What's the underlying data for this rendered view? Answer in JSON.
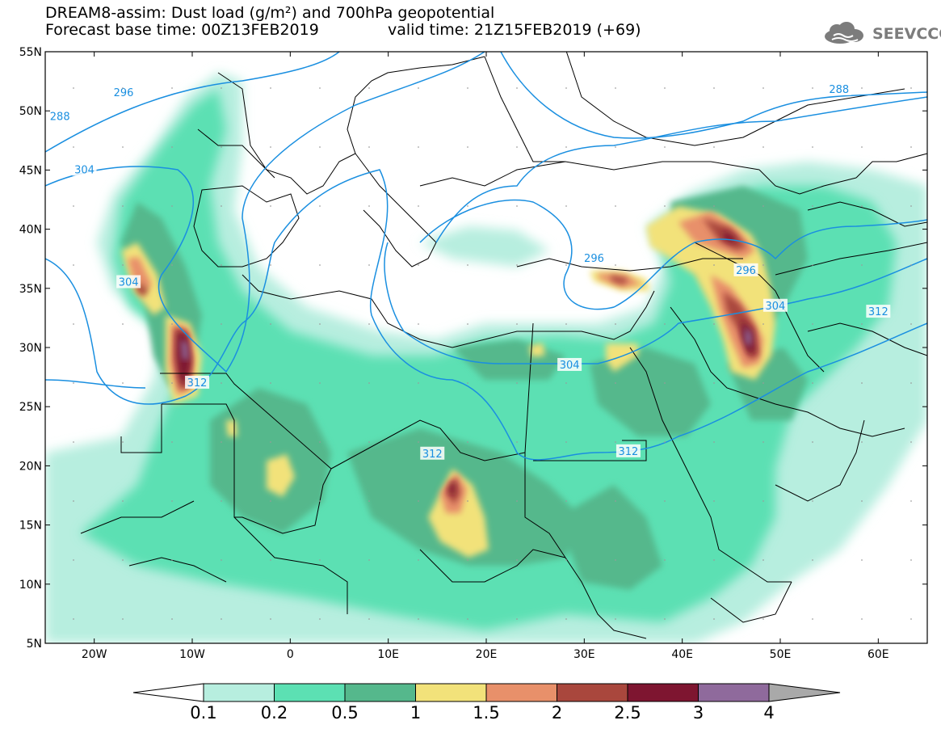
{
  "header": {
    "title_line1": "DREAM8-assim: Dust load (g/m²) and 700hPa geopotential",
    "title_line2": "Forecast base time: 00Z13FEB2019",
    "valid_time": "valid time: 21Z15FEB2019 (+69)",
    "logo_text": "SEEVCCC"
  },
  "map": {
    "lon_range": [
      -25,
      65
    ],
    "lat_range": [
      5,
      55
    ],
    "lat_ticks": [
      {
        "value": 55,
        "label": "55N"
      },
      {
        "value": 50,
        "label": "50N"
      },
      {
        "value": 45,
        "label": "45N"
      },
      {
        "value": 40,
        "label": "40N"
      },
      {
        "value": 35,
        "label": "35N"
      },
      {
        "value": 30,
        "label": "30N"
      },
      {
        "value": 25,
        "label": "25N"
      },
      {
        "value": 20,
        "label": "20N"
      },
      {
        "value": 15,
        "label": "15N"
      },
      {
        "value": 10,
        "label": "10N"
      },
      {
        "value": 5,
        "label": "5N"
      }
    ],
    "lon_ticks": [
      {
        "value": -20,
        "label": "20W"
      },
      {
        "value": -10,
        "label": "10W"
      },
      {
        "value": 0,
        "label": "0"
      },
      {
        "value": 10,
        "label": "10E"
      },
      {
        "value": 20,
        "label": "20E"
      },
      {
        "value": 30,
        "label": "30E"
      },
      {
        "value": 40,
        "label": "40E"
      },
      {
        "value": 50,
        "label": "50E"
      },
      {
        "value": 60,
        "label": "60E"
      }
    ],
    "contour_color": "#1a8fe0",
    "contour_labels": [
      {
        "text": "288",
        "lon": -23.5,
        "lat": 49.5
      },
      {
        "text": "296",
        "lon": -17,
        "lat": 51.5
      },
      {
        "text": "304",
        "lon": -21,
        "lat": 45
      },
      {
        "text": "304",
        "lon": -16.5,
        "lat": 35.5
      },
      {
        "text": "312",
        "lon": -9.5,
        "lat": 27
      },
      {
        "text": "296",
        "lon": 31,
        "lat": 37.5
      },
      {
        "text": "296",
        "lon": 46.5,
        "lat": 36.5
      },
      {
        "text": "304",
        "lon": 28.5,
        "lat": 28.5
      },
      {
        "text": "304",
        "lon": 49.5,
        "lat": 33.5
      },
      {
        "text": "312",
        "lon": 14.5,
        "lat": 21
      },
      {
        "text": "312",
        "lon": 34.5,
        "lat": 21.2
      },
      {
        "text": "312",
        "lon": 60,
        "lat": 33
      },
      {
        "text": "288",
        "lon": 56,
        "lat": 51.8
      }
    ]
  },
  "colorbar": {
    "levels": [
      "0.1",
      "0.2",
      "0.5",
      "1",
      "1.5",
      "2",
      "2.5",
      "3",
      "4"
    ],
    "colors": [
      "#b7eedf",
      "#5ce0b3",
      "#55b88c",
      "#f2e27a",
      "#e8906a",
      "#a9473d",
      "#7e1530",
      "#8f6a9c"
    ],
    "under_color": "#ffffff",
    "over_color": "#a9a9a9"
  }
}
